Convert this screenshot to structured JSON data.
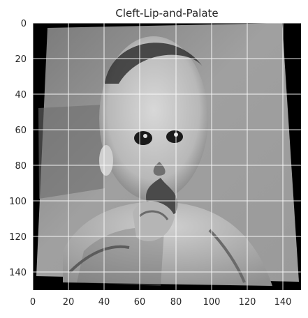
{
  "figure": {
    "title": "Cleft-Lip-and-Palate",
    "x_ticks": [
      "0",
      "20",
      "40",
      "60",
      "80",
      "100",
      "120",
      "140"
    ],
    "y_ticks": [
      "0",
      "20",
      "40",
      "60",
      "80",
      "100",
      "120",
      "140"
    ],
    "image_subject": "grayscale photo of an infant with cleft lip, slightly rotated on a black background",
    "axis_range": {
      "x": [
        0,
        150
      ],
      "y": [
        0,
        150
      ]
    },
    "grid": true,
    "colormap": "grayscale"
  }
}
